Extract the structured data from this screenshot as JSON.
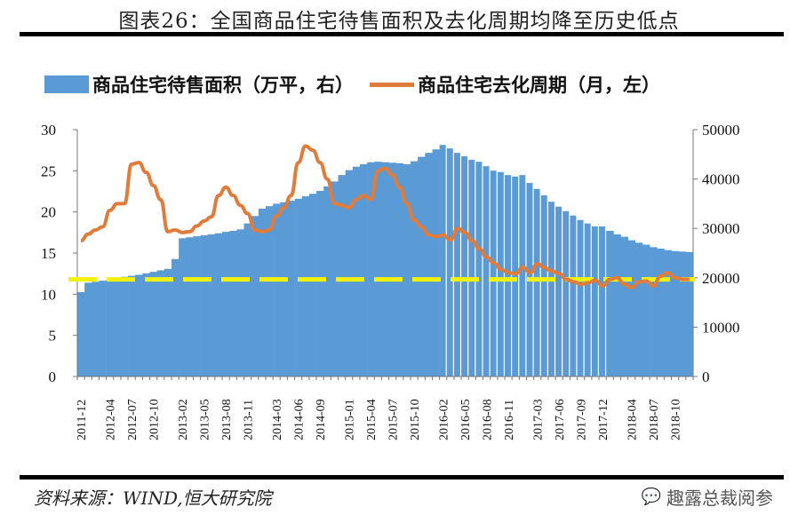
{
  "chart_data": {
    "type": "bar+line",
    "title": "图表26：全国商品住宅待售面积及去化周期均降至历史低点",
    "source": "资料来源：WIND,恒大研究院",
    "watermark": "趣露总裁阅参",
    "colors": {
      "bar": "#5b9bd5",
      "line": "#e07b39",
      "reference": "#f2f20a"
    },
    "legend": [
      {
        "label": "商品住宅待售面积（万平，右）",
        "kind": "bar"
      },
      {
        "label": "商品住宅去化周期（月，左）",
        "kind": "line"
      }
    ],
    "legend_placement": "top",
    "left_axis": {
      "ylim": [
        0,
        30
      ],
      "ticks": [
        "0",
        "5",
        "10",
        "15",
        "20",
        "25",
        "30"
      ]
    },
    "right_axis": {
      "ylim": [
        0,
        50000
      ],
      "ticks": [
        "0",
        "10000",
        "20000",
        "30000",
        "40000",
        "50000"
      ]
    },
    "x_tick_labels": [
      "2011-12",
      "2012-04",
      "2012-07",
      "2012-10",
      "2013-02",
      "2013-05",
      "2013-08",
      "2013-11",
      "2014-03",
      "2014-06",
      "2014-09",
      "2015-01",
      "2015-04",
      "2015-07",
      "2015-10",
      "2016-02",
      "2016-05",
      "2016-08",
      "2016-11",
      "2017-03",
      "2017-06",
      "2017-09",
      "2017-12",
      "2018-04",
      "2018-07",
      "2018-10"
    ],
    "reference_line": {
      "value_left_axis": 11.8,
      "style": "dashed"
    },
    "bars_unit": "万平",
    "bar_values": [
      17100,
      19000,
      19200,
      19400,
      19600,
      19900,
      20200,
      20400,
      20600,
      20900,
      21200,
      21500,
      21800,
      23800,
      28000,
      28200,
      28400,
      28600,
      28800,
      29000,
      29300,
      29500,
      29800,
      31000,
      32500,
      34000,
      34500,
      35000,
      35300,
      35600,
      36000,
      36500,
      37000,
      37600,
      38500,
      39500,
      40800,
      41800,
      42500,
      43000,
      43400,
      43500,
      43400,
      43300,
      43200,
      43000,
      43600,
      44500,
      45300,
      46000,
      46900,
      46200,
      45300,
      44600,
      43900,
      43500,
      42600,
      41700,
      41400,
      40800,
      40500,
      40800,
      39200,
      38000,
      36700,
      35400,
      34400,
      33500,
      32600,
      31700,
      31000,
      30400,
      30400,
      29500,
      28800,
      28300,
      27600,
      27100,
      26700,
      26200,
      25900,
      25600,
      25400,
      25300,
      25200
    ],
    "line_values": [
      16.5,
      17.3,
      17.8,
      18.2,
      20.2,
      21.0,
      21.0,
      25.8,
      26.0,
      24.8,
      23.2,
      21.5,
      17.6,
      17.8,
      17.5,
      17.6,
      18.3,
      18.9,
      19.4,
      22.0,
      23.0,
      22.0,
      20.8,
      19.8,
      17.8,
      17.6,
      17.8,
      19.5,
      20.5,
      22.0,
      26.0,
      28.0,
      27.5,
      26.0,
      24.0,
      21.0,
      20.8,
      20.5,
      21.5,
      22.0,
      21.5,
      25.0,
      25.3,
      24.5,
      23.0,
      21.0,
      19.0,
      18.2,
      17.2,
      17.0,
      17.2,
      16.6,
      18.0,
      17.5,
      16.5,
      15.5,
      14.5,
      13.8,
      13.0,
      12.6,
      12.5,
      13.3,
      12.6,
      13.7,
      13.2,
      12.8,
      12.5,
      11.8,
      11.5,
      11.2,
      11.4,
      11.7,
      11.0,
      11.8,
      12.0,
      11.2,
      10.8,
      11.5,
      11.6,
      11.0,
      12.2,
      12.6,
      12.0,
      11.8,
      11.8
    ]
  }
}
